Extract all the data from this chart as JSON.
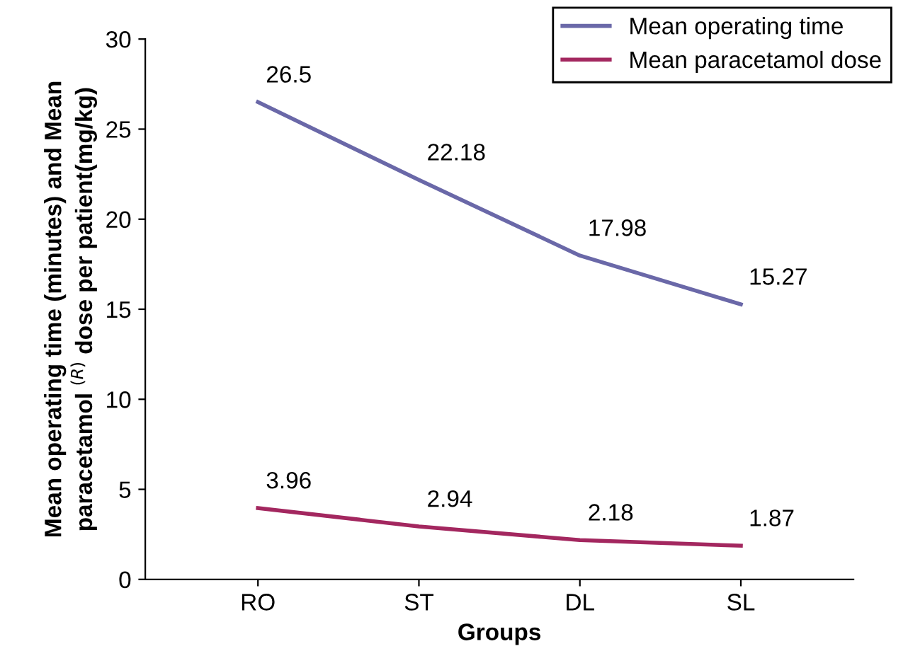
{
  "chart_data": {
    "type": "line",
    "xlabel": "Groups",
    "ylabel": "Mean operating time (minutes) and Mean\nparacetamol $^{(R)}$ dose per patient(mg/kg)",
    "categories": [
      "RO",
      "ST",
      "DL",
      "SL"
    ],
    "series": [
      {
        "name": "Mean operating time",
        "color": "#6a68a8",
        "values": [
          26.5,
          22.18,
          17.98,
          15.27
        ]
      },
      {
        "name": "Mean paracetamol dose",
        "color": "#a3275f",
        "values": [
          3.96,
          2.94,
          2.18,
          1.87
        ]
      }
    ],
    "ylim": [
      0,
      30
    ],
    "yticks": [
      0,
      5,
      10,
      15,
      20,
      25,
      30
    ],
    "data_labels": true,
    "legend": "top right",
    "grid": false,
    "marker": "none",
    "line_style": "solid"
  }
}
